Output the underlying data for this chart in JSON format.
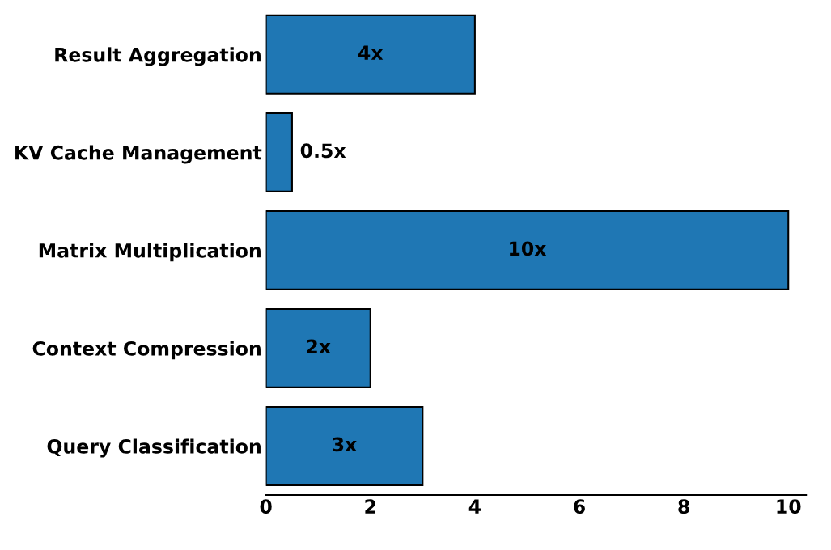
{
  "chart_data": {
    "type": "bar",
    "orientation": "horizontal",
    "categories": [
      "Result Aggregation",
      "KV Cache Management",
      "Matrix Multiplication",
      "Context Compression",
      "Query Classification"
    ],
    "values": [
      4,
      0.5,
      10,
      2,
      3
    ],
    "value_labels": [
      "4x",
      "0.5x",
      "10x",
      "2x",
      "3x"
    ],
    "color": "#1f77b4",
    "xlim": [
      0,
      10.34
    ],
    "xticks": [
      0,
      2,
      4,
      6,
      8,
      10
    ],
    "grid": false
  }
}
